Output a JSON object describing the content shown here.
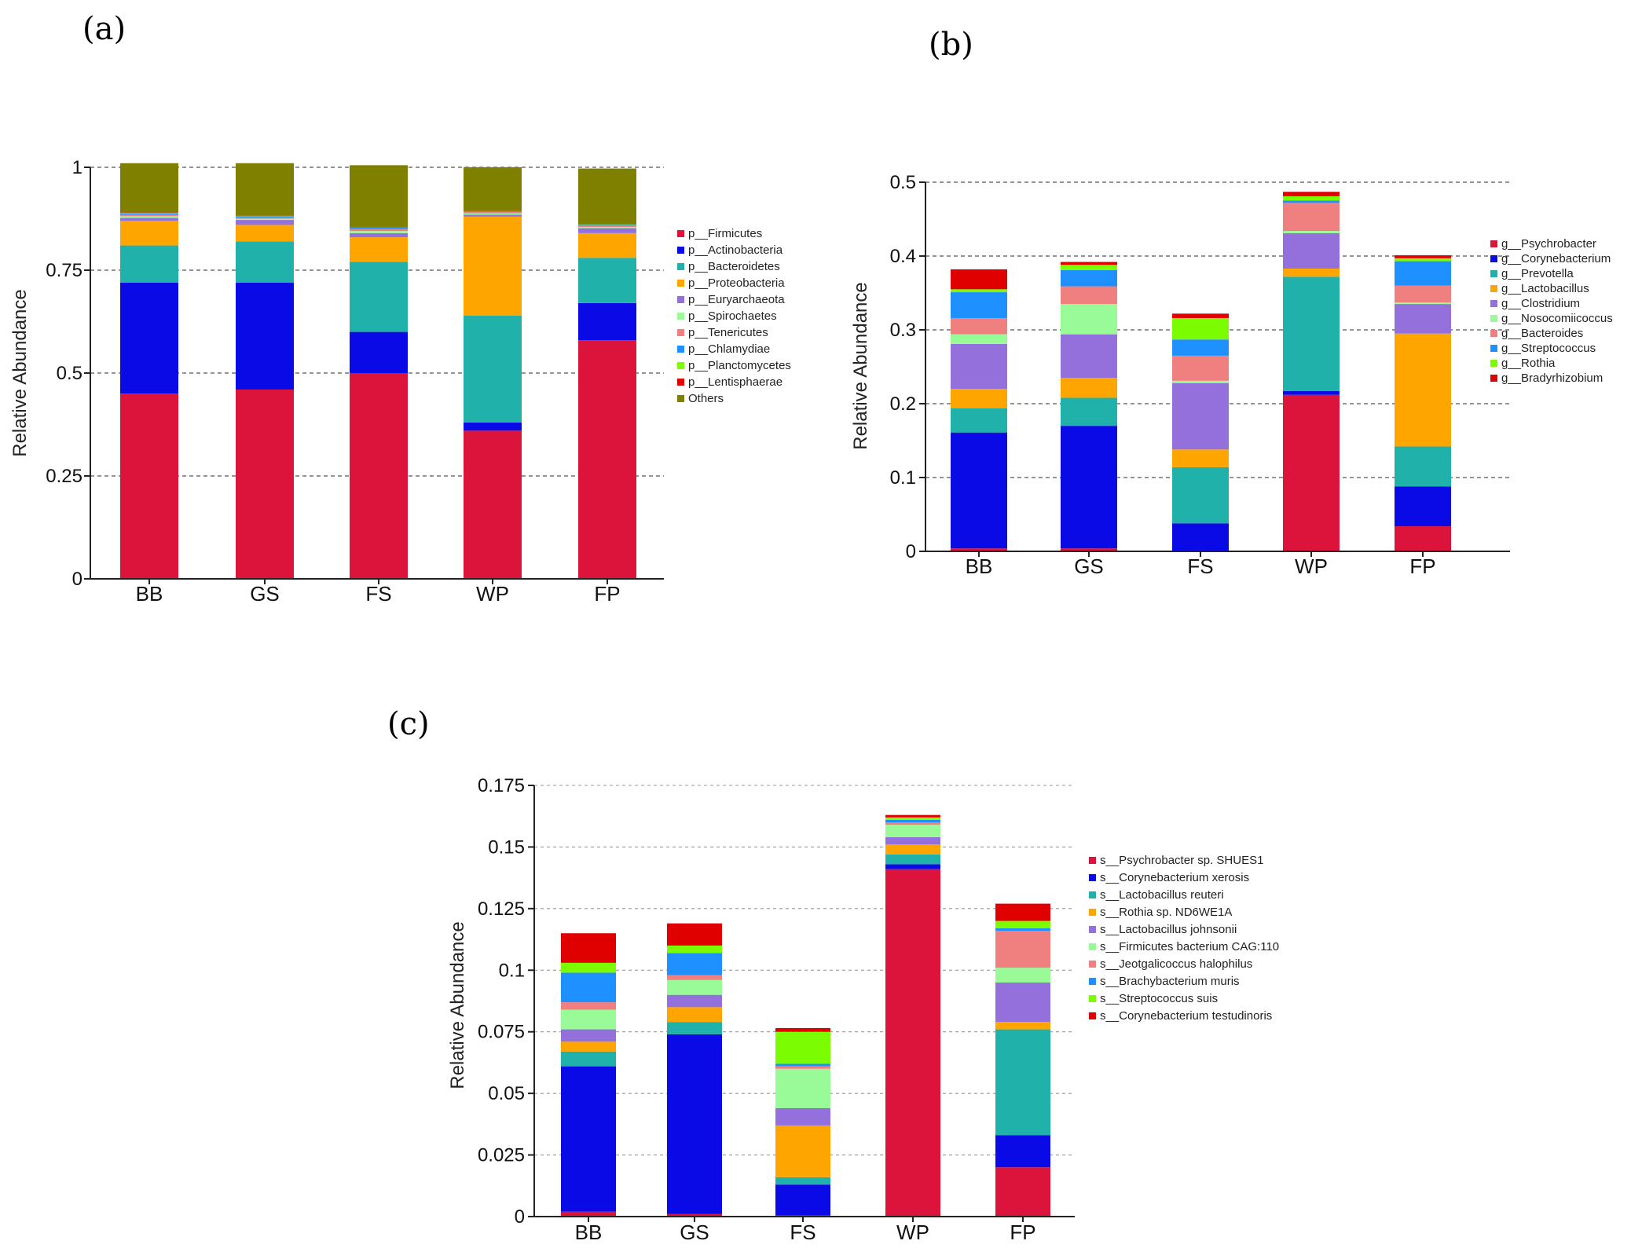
{
  "chart_data": [
    {
      "panel_label": "(a)",
      "type": "bar",
      "stacked": true,
      "ylabel": "Relative Abundance",
      "ylim": [
        0,
        1
      ],
      "yticks": [
        "0",
        "0.25",
        "0.5",
        "0.75",
        "1"
      ],
      "ytick_values": [
        0,
        0.25,
        0.5,
        0.75,
        1
      ],
      "grid": "dashed",
      "legend": "right",
      "categories": [
        "BB",
        "GS",
        "FS",
        "WP",
        "FP"
      ],
      "series": [
        {
          "name": "p__Firmicutes",
          "color": "#dc143c",
          "values": [
            0.45,
            0.46,
            0.5,
            0.36,
            0.58
          ]
        },
        {
          "name": "p__Actinobacteria",
          "color": "#0a0ae6",
          "values": [
            0.27,
            0.26,
            0.1,
            0.02,
            0.09
          ]
        },
        {
          "name": "p__Bacteroidetes",
          "color": "#20b2aa",
          "values": [
            0.09,
            0.1,
            0.17,
            0.26,
            0.11
          ]
        },
        {
          "name": "p__Proteobacteria",
          "color": "#ffa500",
          "values": [
            0.06,
            0.04,
            0.06,
            0.24,
            0.06
          ]
        },
        {
          "name": "p__Euryarchaeota",
          "color": "#9370db",
          "values": [
            0.007,
            0.012,
            0.01,
            0.005,
            0.012
          ]
        },
        {
          "name": "p__Spirochaetes",
          "color": "#98fb98",
          "values": [
            0.004,
            0.003,
            0.005,
            0.003,
            0.003
          ]
        },
        {
          "name": "p__Tenericutes",
          "color": "#f08080",
          "values": [
            0.004,
            0.003,
            0.005,
            0.003,
            0.003
          ]
        },
        {
          "name": "p__Chlamydiae",
          "color": "#1e90ff",
          "values": [
            0.003,
            0.002,
            0.003,
            0.002,
            0.002
          ]
        },
        {
          "name": "p__Planctomycetes",
          "color": "#7cfc00",
          "values": [
            0.001,
            0.001,
            0.001,
            0.001,
            0.001
          ]
        },
        {
          "name": "p__Lentisphaerae",
          "color": "#e00000",
          "values": [
            0.001,
            0.001,
            0.001,
            0.001,
            0.001
          ]
        },
        {
          "name": "Others",
          "color": "#808000",
          "values": [
            0.12,
            0.128,
            0.15,
            0.105,
            0.135
          ]
        }
      ]
    },
    {
      "panel_label": "(b)",
      "type": "bar",
      "stacked": true,
      "ylabel": "Relative Abundance",
      "ylim": [
        0,
        0.5
      ],
      "yticks": [
        "0",
        "0.1",
        "0.2",
        "0.3",
        "0.4",
        "0.5"
      ],
      "ytick_values": [
        0,
        0.1,
        0.2,
        0.3,
        0.4,
        0.5
      ],
      "grid": "dashed",
      "legend": "right",
      "categories": [
        "BB",
        "GS",
        "FS",
        "WP",
        "FP"
      ],
      "series": [
        {
          "name": "g__Psychrobacter",
          "color": "#dc143c",
          "values": [
            0.004,
            0.004,
            0.001,
            0.212,
            0.034
          ]
        },
        {
          "name": "g__Corynebacterium",
          "color": "#0a0ae6",
          "values": [
            0.157,
            0.166,
            0.037,
            0.005,
            0.054
          ]
        },
        {
          "name": "g__Prevotella",
          "color": "#20b2aa",
          "values": [
            0.033,
            0.038,
            0.076,
            0.155,
            0.054
          ]
        },
        {
          "name": "g__Lactobacillus",
          "color": "#ffa500",
          "values": [
            0.026,
            0.027,
            0.024,
            0.011,
            0.153
          ]
        },
        {
          "name": "g__Clostridium",
          "color": "#9370db",
          "values": [
            0.061,
            0.059,
            0.09,
            0.048,
            0.04
          ]
        },
        {
          "name": "g__Nosocomiicoccus",
          "color": "#98fb98",
          "values": [
            0.013,
            0.041,
            0.003,
            0.003,
            0.002
          ]
        },
        {
          "name": "g__Bacteroides",
          "color": "#f08080",
          "values": [
            0.022,
            0.024,
            0.034,
            0.038,
            0.023
          ]
        },
        {
          "name": "g__Streptococcus",
          "color": "#1e90ff",
          "values": [
            0.035,
            0.022,
            0.022,
            0.003,
            0.033
          ]
        },
        {
          "name": "g__Rothia",
          "color": "#7cfc00",
          "values": [
            0.004,
            0.007,
            0.029,
            0.006,
            0.004
          ]
        },
        {
          "name": "g__Bradyrhizobium",
          "color": "#e00000",
          "values": [
            0.027,
            0.004,
            0.006,
            0.006,
            0.004
          ]
        }
      ]
    },
    {
      "panel_label": "(c)",
      "type": "bar",
      "stacked": true,
      "ylabel": "Relative Abundance",
      "ylim": [
        0,
        0.175
      ],
      "yticks": [
        "0",
        "0.025",
        "0.05",
        "0.075",
        "0.1",
        "0.125",
        "0.15",
        "0.175"
      ],
      "ytick_values": [
        0,
        0.025,
        0.05,
        0.075,
        0.1,
        0.125,
        0.15,
        0.175
      ],
      "grid": "dashed",
      "legend": "right",
      "categories": [
        "BB",
        "GS",
        "FS",
        "WP",
        "FP"
      ],
      "series": [
        {
          "name": "s__Psychrobacter sp. SHUES1",
          "color": "#dc143c",
          "values": [
            0.002,
            0.001,
            0.0005,
            0.141,
            0.02
          ]
        },
        {
          "name": "s__Corynebacterium xerosis",
          "color": "#0a0ae6",
          "values": [
            0.059,
            0.073,
            0.0125,
            0.002,
            0.013
          ]
        },
        {
          "name": "s__Lactobacillus reuteri",
          "color": "#20b2aa",
          "values": [
            0.006,
            0.005,
            0.003,
            0.004,
            0.043
          ]
        },
        {
          "name": "s__Rothia sp. ND6WE1A",
          "color": "#ffa500",
          "values": [
            0.004,
            0.006,
            0.021,
            0.004,
            0.003
          ]
        },
        {
          "name": "s__Lactobacillus johnsonii",
          "color": "#9370db",
          "values": [
            0.005,
            0.005,
            0.007,
            0.003,
            0.016
          ]
        },
        {
          "name": "s__Firmicutes bacterium CAG:110",
          "color": "#98fb98",
          "values": [
            0.008,
            0.006,
            0.016,
            0.005,
            0.006
          ]
        },
        {
          "name": "s__Jeotgalicoccus halophilus",
          "color": "#f08080",
          "values": [
            0.003,
            0.002,
            0.001,
            0.001,
            0.015
          ]
        },
        {
          "name": "s__Brachybacterium muris",
          "color": "#1e90ff",
          "values": [
            0.012,
            0.009,
            0.001,
            0.001,
            0.001
          ]
        },
        {
          "name": "s__Streptococcus suis",
          "color": "#7cfc00",
          "values": [
            0.004,
            0.003,
            0.013,
            0.001,
            0.003
          ]
        },
        {
          "name": "s__Corynebacterium testudinoris",
          "color": "#e00000",
          "values": [
            0.012,
            0.009,
            0.0015,
            0.001,
            0.007
          ]
        }
      ]
    }
  ]
}
